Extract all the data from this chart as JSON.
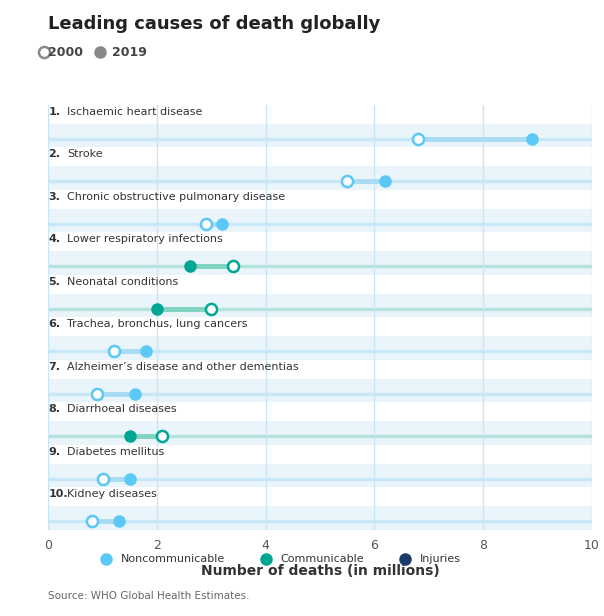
{
  "title": "Leading causes of death globally",
  "xlabel": "Number of deaths (in millions)",
  "source": "Source: WHO Global Health Estimates.",
  "categories": [
    "1. Ischaemic heart disease",
    "2. Stroke",
    "3. Chronic obstructive pulmonary disease",
    "4. Lower respiratory infections",
    "5. Neonatal conditions",
    "6. Trachea, bronchus, lung cancers",
    "7. Alzheimer’s disease and other dementias",
    "8. Diarrhoeal diseases",
    "9. Diabetes mellitus",
    "10. Kidney diseases"
  ],
  "val_2000": [
    6.8,
    5.5,
    2.9,
    3.4,
    3.0,
    1.2,
    0.9,
    2.1,
    1.0,
    0.8
  ],
  "val_2019": [
    8.9,
    6.2,
    3.2,
    2.6,
    2.0,
    1.8,
    1.6,
    1.5,
    1.5,
    1.3
  ],
  "category_type": [
    "noncommunicable",
    "noncommunicable",
    "noncommunicable",
    "communicable",
    "communicable",
    "noncommunicable",
    "noncommunicable",
    "communicable",
    "noncommunicable",
    "noncommunicable"
  ],
  "color_noncommunicable": "#5BC8F5",
  "color_communicable": "#00A693",
  "color_injuries": "#1B3A6B",
  "color_line_noncommunicable": "#A8DCF5",
  "color_line_communicable": "#7FD4C1",
  "xlim": [
    0,
    10
  ],
  "xticks": [
    0,
    2,
    4,
    6,
    8,
    10
  ],
  "bg_color": "#FFFFFF",
  "grid_color": "#C8E6F5",
  "row_bg_color": "#EAF4FB"
}
